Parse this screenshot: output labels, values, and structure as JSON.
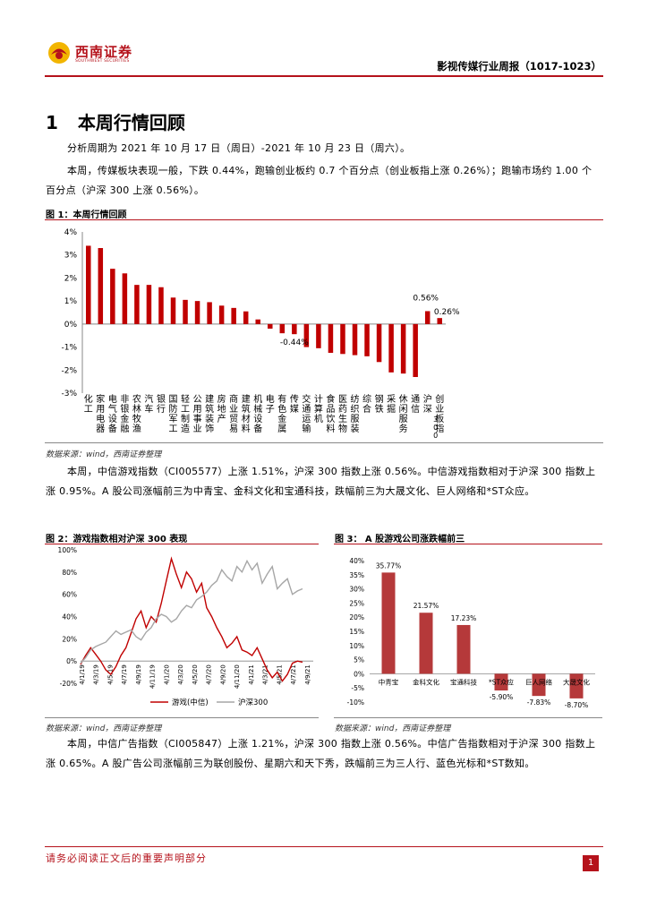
{
  "header": {
    "logo_cn": "西南证券",
    "logo_en": "SOUTHWEST SECURITIES",
    "report_title": "影视传媒行业周报（1017-1023）",
    "brand_color": "#b5121b"
  },
  "section": {
    "number": "1",
    "title": "本周行情回顾"
  },
  "paragraphs": {
    "p1": "分析周期为 2021 年 10 月 17 日（周日）-2021 年 10 月 23 日（周六）。",
    "p2": "本周，传媒板块表现一般，下跌 0.44%，跑输创业板约 0.7 个百分点（创业板指上涨 0.26%）；跑输市场约 1.00 个百分点（沪深 300 上涨 0.56%）。",
    "p3": "本周，中信游戏指数（CI005577）上涨 1.51%，沪深 300 指数上涨 0.56%。中信游戏指数相对于沪深 300 指数上涨 0.95%。A 股公司涨幅前三为中青宝、金科文化和宝通科技，跌幅前三为大晟文化、巨人网络和*ST众应。",
    "p4": "本周，中信广告指数（CI005847）上涨 1.21%，沪深 300 指数上涨 0.56%。中信广告指数相对于沪深 300 指数上涨 0.65%。A 股广告公司涨幅前三为联创股份、星期六和天下秀，跌幅前三为三人行、蓝色光标和*ST数知。"
  },
  "figures": {
    "fig1_title": "图 1：本周行情回顾",
    "fig1_source": "数据来源：wind，西南证券整理",
    "fig2_title": "图 2：游戏指数相对沪深 300 表现",
    "fig2_source": "数据来源：wind，西南证券整理",
    "fig3_title": "图 3：  A 股游戏公司涨跌幅前三",
    "fig3_source": "数据来源：wind，西南证券整理"
  },
  "chart_data": [
    {
      "id": "fig1",
      "type": "bar",
      "title": "本周行情回顾",
      "ylim": [
        -3,
        4
      ],
      "yticks": [
        "4%",
        "3%",
        "2%",
        "1%",
        "0%",
        "-1%",
        "-2%",
        "-3%"
      ],
      "categories": [
        "化工",
        "家用电器",
        "电气设备",
        "非银金融",
        "农林牧渔",
        "汽车",
        "银行",
        "国防军工",
        "轻工制造",
        "公用事业",
        "建筑装饰",
        "房地产",
        "商业贸易",
        "建筑材料",
        "机械设备",
        "电子",
        "有色金属",
        "传媒",
        "交通运输",
        "计算机",
        "食品饮料",
        "医药生物",
        "纺织服装",
        "综合",
        "钢铁",
        "采掘",
        "休闲服务",
        "通信",
        "沪深300",
        "创业板指"
      ],
      "values": [
        3.4,
        3.3,
        2.4,
        2.2,
        1.7,
        1.7,
        1.6,
        1.15,
        1.05,
        1.0,
        0.95,
        0.8,
        0.7,
        0.55,
        0.2,
        -0.2,
        -0.4,
        -0.44,
        -1.0,
        -1.05,
        -1.25,
        -1.3,
        -1.35,
        -1.4,
        -1.65,
        -2.1,
        -2.15,
        -2.3,
        0.56,
        0.26
      ],
      "data_labels": {
        "17": "-0.44%",
        "28": "0.56%",
        "29": "0.26%"
      },
      "colors": {
        "default": "#c00000",
        "highlight": "#c00000"
      }
    },
    {
      "id": "fig2",
      "type": "line",
      "ylim": [
        -20,
        100
      ],
      "yticks": [
        "100%",
        "80%",
        "60%",
        "40%",
        "20%",
        "0%",
        "-20%"
      ],
      "xticks": [
        "4/1/19",
        "4/3/19",
        "4/5/19",
        "4/7/19",
        "4/9/19",
        "4/11/19",
        "4/1/20",
        "4/3/20",
        "4/5/20",
        "4/7/20",
        "4/9/20",
        "4/11/20",
        "4/1/21",
        "4/3/21",
        "4/5/21",
        "4/7/21",
        "4/9/21"
      ],
      "series": [
        {
          "name": "游戏(中信)",
          "color": "#c00000",
          "values": [
            -3,
            5,
            12,
            6,
            0,
            -8,
            -12,
            -5,
            5,
            12,
            25,
            38,
            45,
            30,
            40,
            35,
            52,
            72,
            92,
            78,
            66,
            80,
            74,
            62,
            70,
            48,
            40,
            30,
            22,
            12,
            16,
            22,
            10,
            8,
            5,
            12,
            2,
            -8,
            -15,
            -10,
            -18,
            -12,
            -2,
            0,
            -1
          ]
        },
        {
          "name": "沪深300",
          "color": "#a6a6a6",
          "values": [
            -2,
            3,
            10,
            13,
            15,
            17,
            22,
            27,
            24,
            26,
            28,
            22,
            19,
            26,
            30,
            38,
            42,
            40,
            35,
            38,
            45,
            50,
            48,
            55,
            58,
            62,
            68,
            72,
            82,
            76,
            72,
            85,
            80,
            90,
            82,
            88,
            70,
            78,
            85,
            65,
            70,
            74,
            60,
            63,
            65
          ]
        }
      ]
    },
    {
      "id": "fig3",
      "type": "bar",
      "ylim": [
        -10,
        40
      ],
      "yticks": [
        "40%",
        "35%",
        "30%",
        "25%",
        "20%",
        "15%",
        "10%",
        "5%",
        "0%",
        "-5%",
        "-10%"
      ],
      "categories": [
        "中青宝",
        "金科文化",
        "宝通科技",
        "*ST众应",
        "巨人网络",
        "大晟文化"
      ],
      "values": [
        35.77,
        21.57,
        17.23,
        -5.9,
        -7.83,
        -8.7
      ],
      "data_labels": [
        "35.77%",
        "21.57%",
        "17.23%",
        "-5.90%",
        "-7.83%",
        "-8.70%"
      ],
      "colors": {
        "default": "#b5393a"
      }
    }
  ],
  "footer": {
    "disclaimer": "请务必阅读正文后的重要声明部分",
    "page_number": "1"
  }
}
